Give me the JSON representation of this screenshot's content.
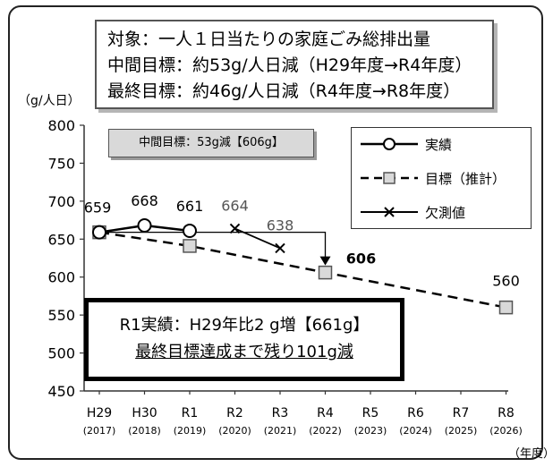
{
  "title_box": {
    "line1": "対象：一人１日当たりの家庭ごみ総排出量",
    "line2": "中間目標：約53g/人日減（H29年度→R4年度）",
    "line3": "最終目標：約46g/人日減（R4年度→R8年度）"
  },
  "mid_target_label": "中間目標：53g減【606g】",
  "summary_box": {
    "line1": "R1実績：H29年比2 g増【661g】",
    "line2": "最終目標達成まで残り101g減"
  },
  "chart_data": {
    "type": "line",
    "ylabel": "（g/人日）",
    "xlabel_unit": "（年度）",
    "ylim": [
      450,
      800
    ],
    "yticks": [
      450,
      500,
      550,
      600,
      650,
      700,
      750,
      800
    ],
    "categories": [
      "H29",
      "H30",
      "R1",
      "R2",
      "R3",
      "R4",
      "R5",
      "R6",
      "R7",
      "R8"
    ],
    "categories_sub": [
      "(2017)",
      "(2018)",
      "(2019)",
      "(2020)",
      "(2021)",
      "(2022)",
      "(2023)",
      "(2024)",
      "(2025)",
      "(2026)"
    ],
    "series": [
      {
        "name": "実績",
        "points": [
          {
            "x": "H29",
            "y": 659
          },
          {
            "x": "H30",
            "y": 668
          },
          {
            "x": "R1",
            "y": 661
          }
        ],
        "labels": [
          "659",
          "668",
          "661"
        ],
        "color": "#000000",
        "marker": "circle",
        "dash": "solid"
      },
      {
        "name": "目標（推計）",
        "points": [
          {
            "x": "H29",
            "y": 659
          },
          {
            "x": "R1",
            "y": 641
          },
          {
            "x": "R4",
            "y": 606
          },
          {
            "x": "R8",
            "y": 560
          }
        ],
        "labels": [
          "",
          "",
          "606",
          "560"
        ],
        "color": "#000000",
        "marker": "square",
        "dash": "dashed"
      },
      {
        "name": "欠測値",
        "points": [
          {
            "x": "R2",
            "y": 664
          },
          {
            "x": "R3",
            "y": 638
          }
        ],
        "labels": [
          "664",
          "638"
        ],
        "color": "#000000",
        "marker": "x",
        "dash": "solid"
      }
    ],
    "annotation_arrow": {
      "from_x": "H29",
      "from_y": 659,
      "to_x": "R4",
      "to_y": 606
    }
  }
}
